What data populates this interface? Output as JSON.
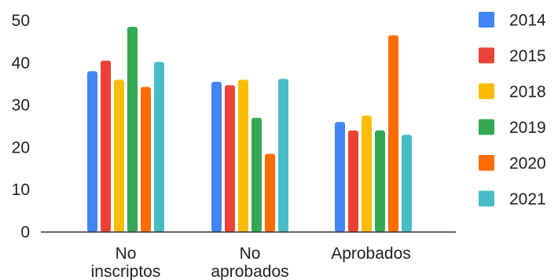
{
  "chart_data": {
    "type": "bar",
    "title": "",
    "xlabel": "",
    "ylabel": "",
    "ylim": [
      0,
      50
    ],
    "yticks": [
      0,
      10,
      20,
      30,
      40,
      50
    ],
    "grid": false,
    "legend_position": "right",
    "categories": [
      [
        "No",
        "inscriptos"
      ],
      [
        "No",
        "aprobados"
      ],
      [
        "Aprobados"
      ]
    ],
    "series": [
      {
        "name": "2014",
        "color": "#4285f4",
        "values": [
          38,
          35.5,
          26
        ]
      },
      {
        "name": "2015",
        "color": "#ea4335",
        "values": [
          40.5,
          34.7,
          24
        ]
      },
      {
        "name": "2018",
        "color": "#fbbc04",
        "values": [
          36,
          36,
          27.5
        ]
      },
      {
        "name": "2019",
        "color": "#34a853",
        "values": [
          48.5,
          27,
          24
        ]
      },
      {
        "name": "2020",
        "color": "#ff6d01",
        "values": [
          34.3,
          18.5,
          46.5
        ]
      },
      {
        "name": "2021",
        "color": "#46bdc6",
        "values": [
          40.2,
          36.2,
          23
        ]
      }
    ]
  }
}
